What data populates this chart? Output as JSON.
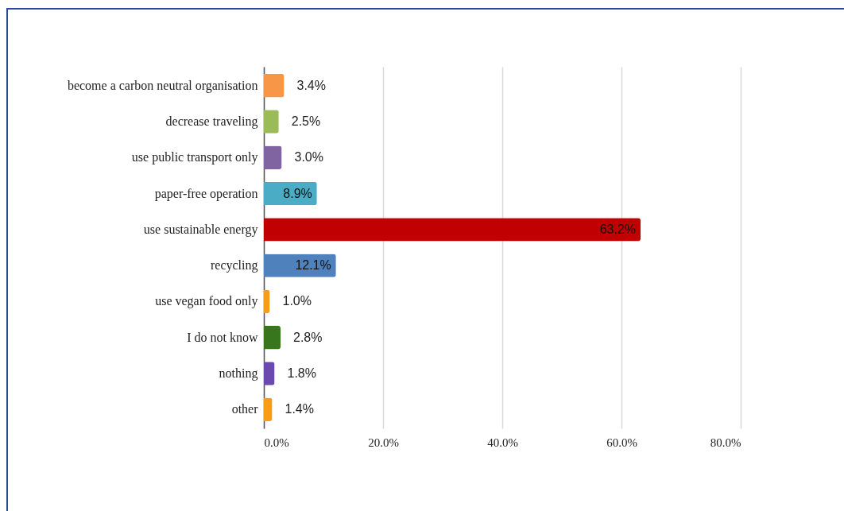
{
  "chart_data": {
    "type": "bar",
    "orientation": "horizontal",
    "categories": [
      "become a carbon neutral organisation",
      "decrease traveling",
      "use public transport only",
      "paper-free operation",
      "use sustainable energy",
      "recycling",
      "use vegan food only",
      "I do not know",
      "nothing",
      "other"
    ],
    "values": [
      3.4,
      2.5,
      3.0,
      8.9,
      63.2,
      12.1,
      1.0,
      2.8,
      1.8,
      1.4
    ],
    "colors": [
      "#f79646",
      "#9bbb59",
      "#8064a2",
      "#4bacc6",
      "#c00000",
      "#4f81bd",
      "#f59d1b",
      "#38761d",
      "#6a4aaf",
      "#f79d12"
    ],
    "value_labels": [
      "3.4%",
      "2.5%",
      "3.0%",
      "8.9%",
      "63.2%",
      "12.1%",
      "1.0%",
      "2.8%",
      "1.8%",
      "1.4%"
    ],
    "xlim": [
      0,
      80
    ],
    "xticks": [
      {
        "value": 0,
        "label": "0.0%"
      },
      {
        "value": 20,
        "label": "20.0%"
      },
      {
        "value": 40,
        "label": "40.0%"
      },
      {
        "value": 60,
        "label": "60.0%"
      },
      {
        "value": 80,
        "label": "80.0%"
      }
    ],
    "grid": "x"
  }
}
